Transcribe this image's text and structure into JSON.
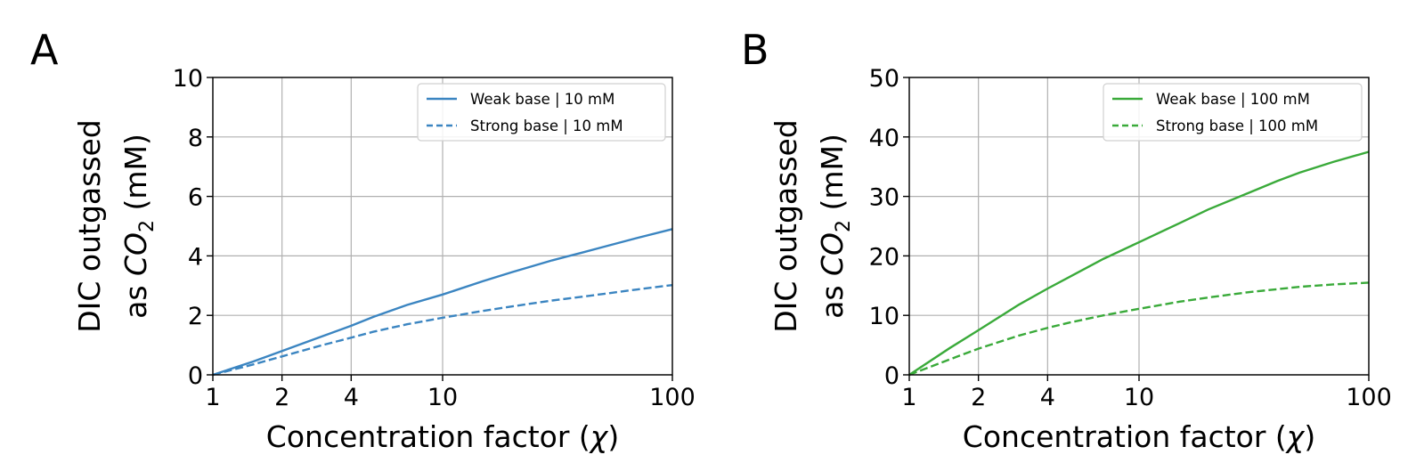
{
  "chart_data": [
    {
      "type": "line",
      "panel_label": "A",
      "xlabel_text": "Concentration factor (",
      "xlabel_symbol": "χ",
      "xlabel_end": ")",
      "ylabel_line1": "DIC outgassed",
      "ylabel_line2_prefix": "as ",
      "ylabel_line2_var": "CO",
      "ylabel_line2_sub": "2",
      "ylabel_line2_suffix": " (mM)",
      "x_scale": "log",
      "xlim": [
        1,
        100
      ],
      "ylim": [
        0,
        10
      ],
      "xticks": [
        1,
        2,
        4,
        10,
        100
      ],
      "xtick_labels": [
        "1",
        "2",
        "4",
        "10",
        "100"
      ],
      "yticks": [
        0,
        2,
        4,
        6,
        8,
        10
      ],
      "ytick_labels": [
        "0",
        "2",
        "4",
        "6",
        "8",
        "10"
      ],
      "grid": true,
      "legend_position": "top-right",
      "color": "#3b85c1",
      "series": [
        {
          "name": "Weak base | 10 mM",
          "style": "solid",
          "x": [
            1,
            1.5,
            2,
            3,
            4,
            5,
            7,
            10,
            15,
            20,
            30,
            40,
            50,
            70,
            100
          ],
          "y": [
            0,
            0.45,
            0.8,
            1.3,
            1.65,
            1.95,
            2.35,
            2.7,
            3.15,
            3.45,
            3.85,
            4.1,
            4.3,
            4.6,
            4.9
          ]
        },
        {
          "name": "Strong base | 10 mM",
          "style": "dashed",
          "x": [
            1,
            1.5,
            2,
            3,
            4,
            5,
            7,
            10,
            15,
            20,
            30,
            40,
            50,
            70,
            100
          ],
          "y": [
            0,
            0.35,
            0.62,
            1.0,
            1.25,
            1.45,
            1.7,
            1.92,
            2.15,
            2.3,
            2.5,
            2.62,
            2.72,
            2.87,
            3.02
          ]
        }
      ]
    },
    {
      "type": "line",
      "panel_label": "B",
      "xlabel_text": "Concentration factor (",
      "xlabel_symbol": "χ",
      "xlabel_end": ")",
      "ylabel_line1": "DIC outgassed",
      "ylabel_line2_prefix": "as ",
      "ylabel_line2_var": "CO",
      "ylabel_line2_sub": "2",
      "ylabel_line2_suffix": " (mM)",
      "x_scale": "log",
      "xlim": [
        1,
        100
      ],
      "ylim": [
        0,
        50
      ],
      "xticks": [
        1,
        2,
        4,
        10,
        100
      ],
      "xtick_labels": [
        "1",
        "2",
        "4",
        "10",
        "100"
      ],
      "yticks": [
        0,
        10,
        20,
        30,
        40,
        50
      ],
      "ytick_labels": [
        "0",
        "10",
        "20",
        "30",
        "40",
        "50"
      ],
      "grid": true,
      "legend_position": "top-right",
      "color": "#3aaa3a",
      "series": [
        {
          "name": "Weak base | 100 mM",
          "style": "solid",
          "x": [
            1,
            1.5,
            2,
            3,
            4,
            5,
            7,
            10,
            15,
            20,
            30,
            40,
            50,
            70,
            100
          ],
          "y": [
            0,
            4.5,
            7.5,
            11.8,
            14.5,
            16.5,
            19.5,
            22.3,
            25.5,
            27.8,
            30.6,
            32.6,
            34.0,
            35.8,
            37.5
          ]
        },
        {
          "name": "Strong base | 100 mM",
          "style": "dashed",
          "x": [
            1,
            1.5,
            2,
            3,
            4,
            5,
            7,
            10,
            15,
            20,
            30,
            40,
            50,
            70,
            100
          ],
          "y": [
            0,
            2.6,
            4.4,
            6.6,
            7.9,
            8.8,
            10.0,
            11.1,
            12.3,
            13.0,
            13.9,
            14.4,
            14.8,
            15.2,
            15.5
          ]
        }
      ]
    }
  ]
}
